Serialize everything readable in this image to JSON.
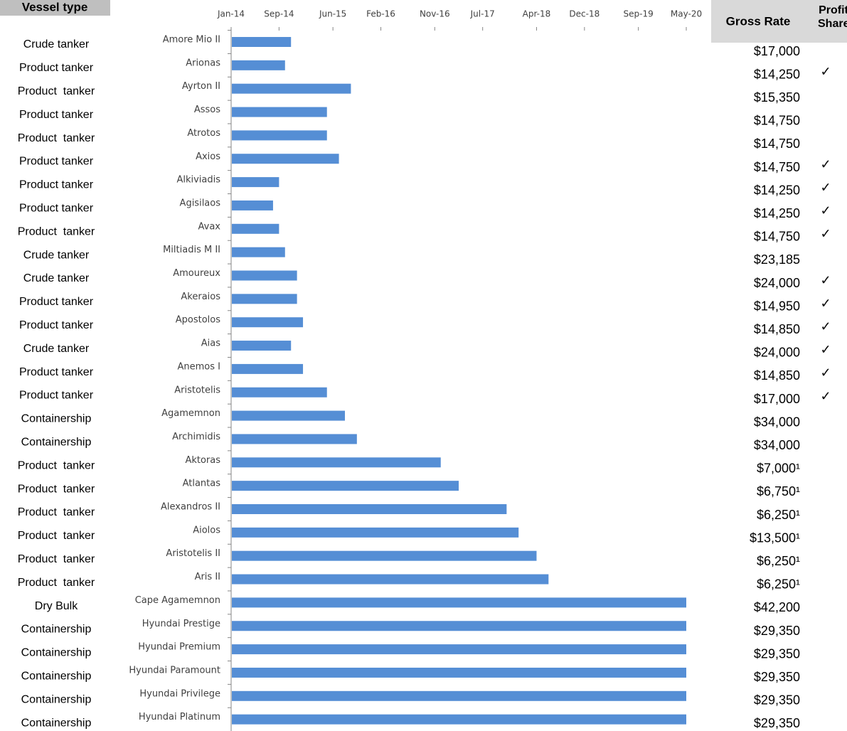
{
  "chart_data": {
    "type": "bar",
    "orientation": "horizontal",
    "categories": [
      "Amore Mio II",
      "Arionas",
      "Ayrton II",
      "Assos",
      "Atrotos",
      "Axios",
      "Alkiviadis",
      "Agisilaos",
      "Avax",
      "Miltiadis M II",
      "Amoureux",
      "Akeraios",
      "Apostolos",
      "Aias",
      "Anemos I",
      "Aristotelis",
      "Agamemnon",
      "Archimidis",
      "Aktoras",
      "Atlantas",
      "Alexandros II",
      "Aiolos",
      "Aristotelis II",
      "Aris II",
      "Cape Agamemnon",
      "Hyundai Prestige",
      "Hyundai Premium",
      "Hyundai Paramount",
      "Hyundai Privilege",
      "Hyundai Platinum"
    ],
    "values": [
      "2014-11",
      "2014-10",
      "2015-09",
      "2015-05",
      "2015-05",
      "2015-07",
      "2014-09",
      "2014-08",
      "2014-09",
      "2014-10",
      "2014-12",
      "2014-12",
      "2015-01",
      "2014-11",
      "2015-01",
      "2015-05",
      "2015-08",
      "2015-10",
      "2016-12",
      "2017-03",
      "2017-11",
      "2018-01",
      "2018-04",
      "2018-06",
      "2020-05",
      "2020-05",
      "2020-05",
      "2020-05",
      "2020-05",
      "2020-05"
    ],
    "color": "#558ed5",
    "xlim": [
      "2014-01",
      "2020-05"
    ],
    "xticks": [
      {
        "value": "2014-01",
        "label": "Jan-14"
      },
      {
        "value": "2014-09",
        "label": "Sep-14"
      },
      {
        "value": "2015-06",
        "label": "Jun-15"
      },
      {
        "value": "2016-02",
        "label": "Feb-16"
      },
      {
        "value": "2016-11",
        "label": "Nov-16"
      },
      {
        "value": "2017-07",
        "label": "Jul-17"
      },
      {
        "value": "2018-04",
        "label": "Apr-18"
      },
      {
        "value": "2018-12",
        "label": "Dec-18"
      },
      {
        "value": "2019-09",
        "label": "Sep-19"
      },
      {
        "value": "2020-05",
        "label": "May-20"
      }
    ],
    "xaxis_position": "top"
  },
  "table": {
    "vessel_type_header": "Vessel type",
    "gross_rate_header": "Gross Rate",
    "profit_share_header": "Profit Share",
    "vessel_types": [
      "Crude tanker",
      "Product tanker",
      "Product  tanker",
      "Product tanker",
      "Product  tanker",
      "Product tanker",
      "Product tanker",
      "Product tanker",
      "Product  tanker",
      "Crude tanker",
      "Crude tanker",
      "Product tanker",
      "Product tanker",
      "Crude tanker",
      "Product tanker",
      "Product tanker",
      "Containership",
      "Containership",
      "Product  tanker",
      "Product  tanker",
      "Product  tanker",
      "Product  tanker",
      "Product  tanker",
      "Product  tanker",
      "Dry Bulk",
      "Containership",
      "Containership",
      "Containership",
      "Containership",
      "Containership"
    ],
    "gross_rates": [
      "$17,000",
      "$14,250",
      "$15,350",
      "$14,750",
      "$14,750",
      "$14,750",
      "$14,250",
      "$14,250",
      "$14,750",
      "$23,185",
      "$24,000",
      "$14,950",
      "$14,850",
      "$24,000",
      "$14,850",
      "$17,000",
      "$34,000",
      "$34,000",
      "$7,000¹",
      "$6,750¹",
      "$6,250¹",
      "$13,500¹",
      "$6,250¹",
      "$6,250¹",
      "$42,200",
      "$29,350",
      "$29,350",
      "$29,350",
      "$29,350",
      "$29,350"
    ],
    "profit_share": [
      null,
      "✓",
      null,
      null,
      null,
      "✓",
      "✓",
      "✓",
      "✓",
      null,
      "✓",
      "✓",
      "✓",
      "✓",
      "✓",
      "✓",
      null,
      null,
      null,
      null,
      null,
      null,
      null,
      null,
      null,
      null,
      null,
      null,
      null,
      null
    ]
  }
}
